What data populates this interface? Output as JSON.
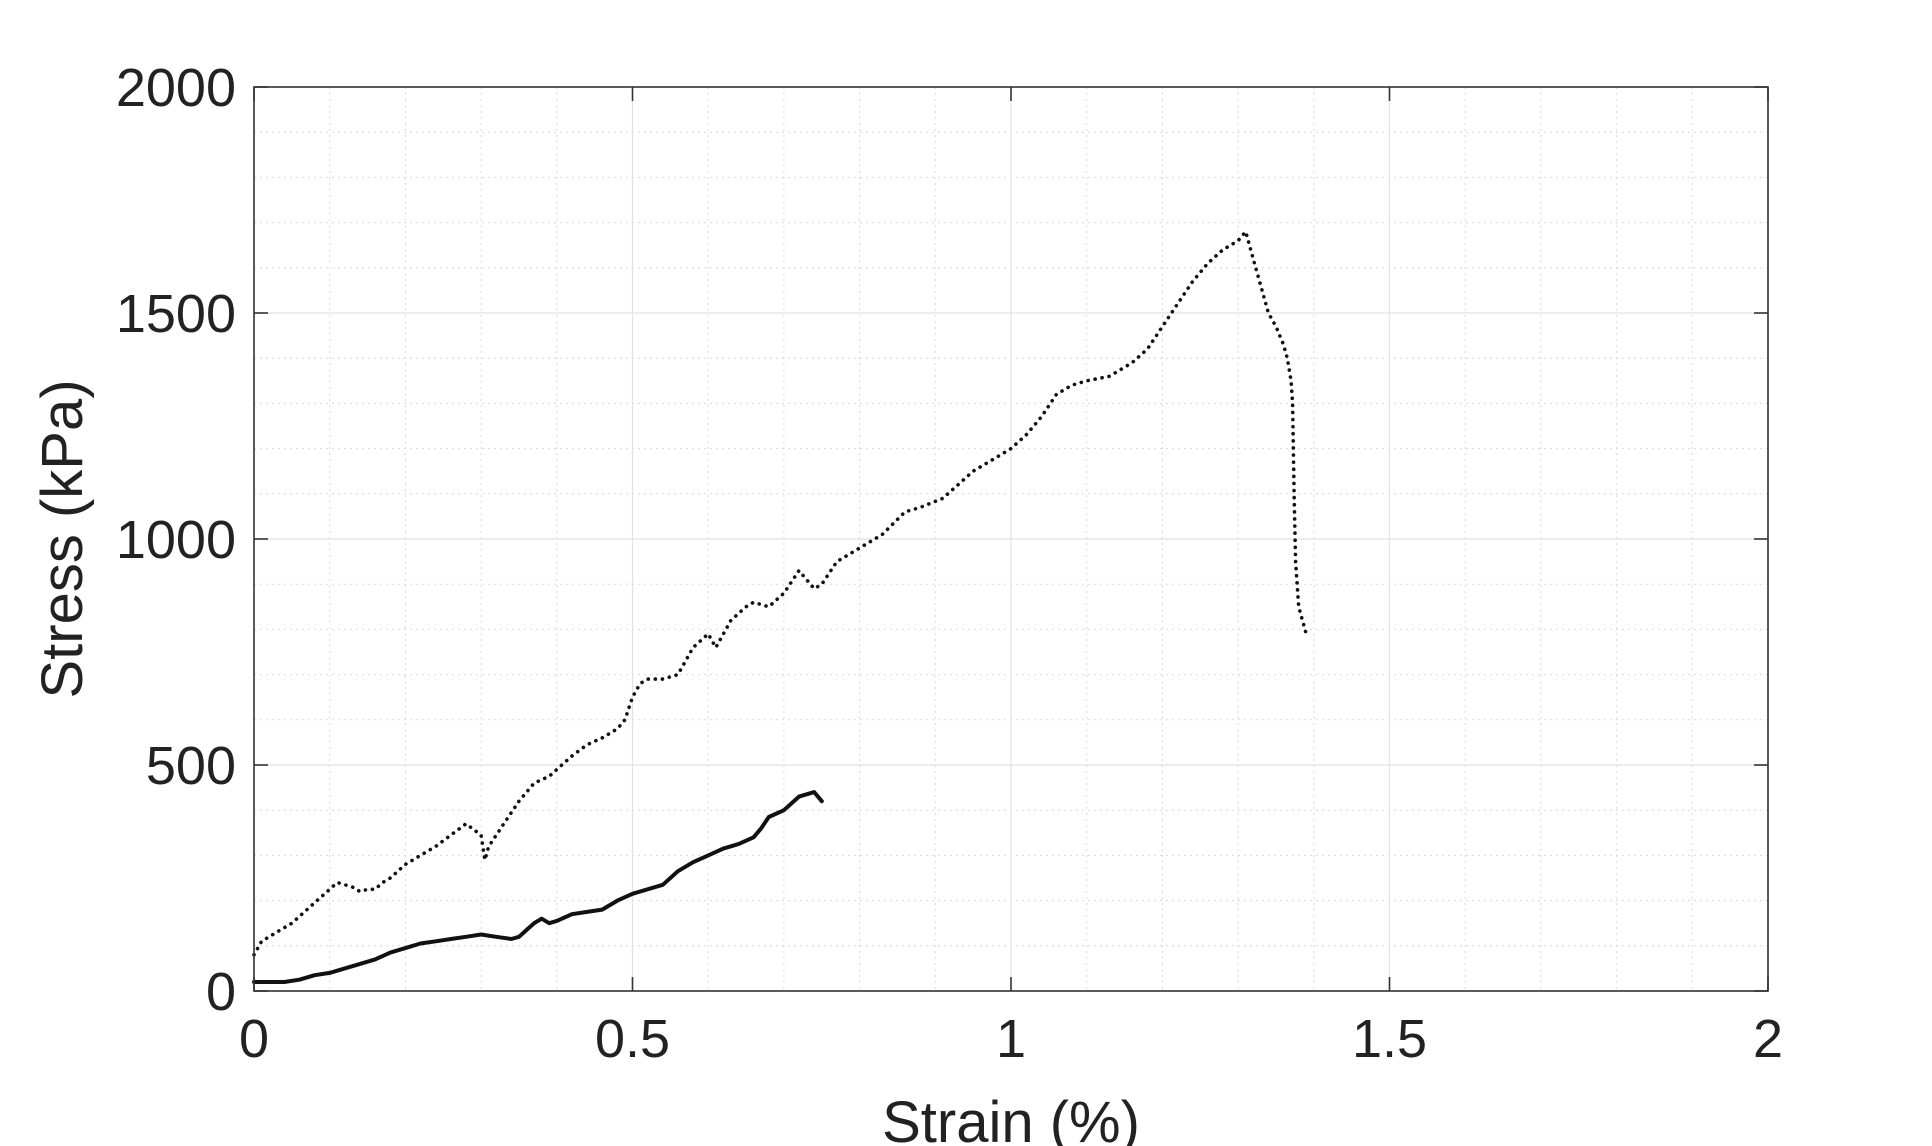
{
  "chart_data": {
    "type": "line",
    "title": "",
    "xlabel": "Strain (%)",
    "ylabel": "Stress (kPa)",
    "xlim": [
      0,
      2
    ],
    "ylim": [
      0,
      2000
    ],
    "xticks": [
      0,
      0.5,
      1,
      1.5,
      2
    ],
    "xtick_labels": [
      "0",
      "0.5",
      "1",
      "1.5",
      "2"
    ],
    "yticks": [
      0,
      500,
      1000,
      1500,
      2000
    ],
    "ytick_labels": [
      "0",
      "500",
      "1000",
      "1500",
      "2000"
    ],
    "grid": true,
    "minor_grid": true,
    "series": [
      {
        "style": "dotted",
        "color": "#111111",
        "x": [
          0,
          0.01,
          0.03,
          0.05,
          0.07,
          0.09,
          0.11,
          0.13,
          0.14,
          0.15,
          0.16,
          0.17,
          0.18,
          0.2,
          0.22,
          0.24,
          0.26,
          0.28,
          0.3,
          0.305,
          0.31,
          0.33,
          0.35,
          0.37,
          0.39,
          0.42,
          0.44,
          0.46,
          0.48,
          0.49,
          0.5,
          0.51,
          0.52,
          0.54,
          0.56,
          0.58,
          0.6,
          0.61,
          0.63,
          0.65,
          0.66,
          0.68,
          0.7,
          0.72,
          0.74,
          0.75,
          0.77,
          0.8,
          0.83,
          0.86,
          0.88,
          0.91,
          0.93,
          0.95,
          0.97,
          1.0,
          1.02,
          1.04,
          1.06,
          1.08,
          1.1,
          1.13,
          1.16,
          1.18,
          1.2,
          1.22,
          1.24,
          1.26,
          1.28,
          1.3,
          1.31,
          1.32,
          1.33,
          1.34,
          1.35,
          1.36,
          1.365,
          1.37,
          1.372,
          1.374,
          1.376,
          1.38,
          1.39
        ],
        "y": [
          80,
          110,
          130,
          150,
          180,
          210,
          240,
          230,
          220,
          225,
          225,
          240,
          250,
          280,
          300,
          320,
          345,
          370,
          345,
          290,
          320,
          370,
          420,
          460,
          475,
          520,
          545,
          560,
          580,
          600,
          650,
          680,
          690,
          690,
          700,
          760,
          790,
          760,
          820,
          850,
          860,
          850,
          880,
          930,
          890,
          900,
          950,
          980,
          1010,
          1060,
          1070,
          1090,
          1120,
          1150,
          1170,
          1200,
          1230,
          1270,
          1320,
          1340,
          1350,
          1360,
          1390,
          1420,
          1470,
          1520,
          1570,
          1610,
          1640,
          1660,
          1680,
          1620,
          1560,
          1500,
          1470,
          1430,
          1400,
          1350,
          1300,
          1100,
          950,
          850,
          790
        ]
      },
      {
        "style": "solid",
        "color": "#111111",
        "x": [
          0,
          0.02,
          0.04,
          0.06,
          0.08,
          0.1,
          0.12,
          0.14,
          0.16,
          0.18,
          0.2,
          0.22,
          0.24,
          0.26,
          0.28,
          0.3,
          0.32,
          0.34,
          0.35,
          0.36,
          0.37,
          0.38,
          0.39,
          0.4,
          0.42,
          0.44,
          0.46,
          0.48,
          0.5,
          0.52,
          0.54,
          0.56,
          0.58,
          0.6,
          0.62,
          0.64,
          0.66,
          0.67,
          0.68,
          0.7,
          0.72,
          0.74,
          0.75
        ],
        "y": [
          20,
          20,
          20,
          25,
          35,
          40,
          50,
          60,
          70,
          85,
          95,
          105,
          110,
          115,
          120,
          125,
          120,
          115,
          120,
          135,
          150,
          160,
          150,
          155,
          170,
          175,
          180,
          200,
          215,
          225,
          235,
          265,
          285,
          300,
          315,
          325,
          340,
          360,
          385,
          400,
          430,
          440,
          420
        ]
      }
    ]
  }
}
